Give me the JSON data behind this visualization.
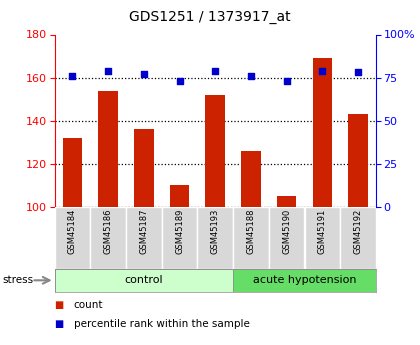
{
  "title": "GDS1251 / 1373917_at",
  "samples": [
    "GSM45184",
    "GSM45186",
    "GSM45187",
    "GSM45189",
    "GSM45193",
    "GSM45188",
    "GSM45190",
    "GSM45191",
    "GSM45192"
  ],
  "counts": [
    132,
    154,
    136,
    110,
    152,
    126,
    105,
    169,
    143
  ],
  "percentiles": [
    76,
    79,
    77,
    73,
    79,
    76,
    73,
    79,
    78
  ],
  "groups": [
    {
      "label": "control",
      "start": 0,
      "end": 5,
      "color": "#ccffcc"
    },
    {
      "label": "acute hypotension",
      "start": 5,
      "end": 9,
      "color": "#66dd66"
    }
  ],
  "ylim_left": [
    100,
    180
  ],
  "ylim_right": [
    0,
    100
  ],
  "yticks_left": [
    100,
    120,
    140,
    160,
    180
  ],
  "yticks_right": [
    0,
    25,
    50,
    75,
    100
  ],
  "ytick_labels_right": [
    "0",
    "25",
    "50",
    "75",
    "100%"
  ],
  "bar_color": "#cc2200",
  "dot_color": "#0000cc",
  "background_color": "#ffffff",
  "stress_label": "stress",
  "legend_items": [
    "count",
    "percentile rank within the sample"
  ]
}
